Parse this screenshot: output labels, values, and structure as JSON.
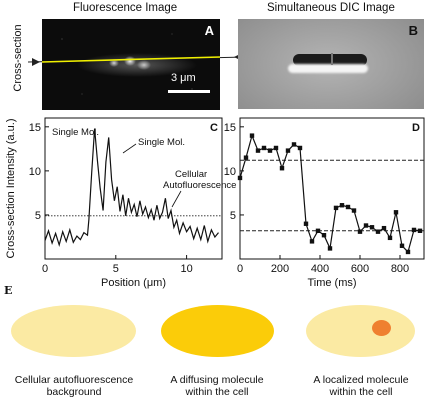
{
  "panel_titles": {
    "fluorescence": "Fluorescence Image",
    "dic": "Simultaneous DIC Image"
  },
  "panel_labels": {
    "a": "A",
    "b": "B",
    "c": "C",
    "d": "D",
    "e": "E"
  },
  "left_axis_label": "Cross-section",
  "scale_bar": "3 μm",
  "chart_data": [
    {
      "type": "line",
      "panel": "C",
      "ylabel": "Cross-section Intensity (a.u.)",
      "xlabel": "Position (μm)",
      "xlim": [
        0,
        12.5
      ],
      "ylim": [
        0,
        16
      ],
      "xticks": [
        "0",
        "5",
        "10"
      ],
      "yticks": [
        "5",
        "10",
        "15"
      ],
      "threshold": 4.9,
      "series": [
        {
          "x": [
            0,
            0.25,
            0.5,
            0.75,
            1,
            1.25,
            1.5,
            1.75,
            2,
            2.25,
            2.5,
            2.75,
            3,
            3.1,
            3.3,
            3.5,
            3.7,
            3.9,
            4.1,
            4.3,
            4.5,
            4.7,
            4.9,
            5.1,
            5.3,
            5.5,
            5.7,
            5.9,
            6.1,
            6.3,
            6.5,
            6.7,
            6.9,
            7.1,
            7.3,
            7.5,
            7.7,
            7.9,
            8.1,
            8.3,
            8.5,
            8.7,
            8.9,
            9.1,
            9.3,
            9.5,
            9.75,
            10,
            10.25,
            10.5,
            10.75,
            11,
            11.25,
            11.5,
            11.75,
            12,
            12.25
          ],
          "y": [
            2.1,
            3.2,
            1.8,
            2.9,
            1.6,
            3.1,
            2.0,
            3.3,
            1.9,
            2.6,
            2.2,
            3.0,
            2.7,
            4.5,
            9.8,
            14.8,
            11.2,
            8.0,
            5.5,
            11.0,
            13.8,
            9.0,
            6.6,
            8.2,
            5.4,
            7.3,
            4.9,
            6.9,
            5.3,
            6.2,
            4.8,
            6.6,
            5.1,
            5.9,
            4.7,
            5.6,
            4.4,
            6.1,
            4.6,
            5.3,
            6.9,
            4.6,
            5.5,
            3.6,
            4.4,
            2.9,
            4.1,
            3.1,
            3.7,
            2.3,
            3.5,
            2.2,
            3.8,
            2.0,
            3.3,
            2.5,
            3.0
          ]
        }
      ],
      "annotations": [
        "Single Mol.",
        "Single Mol.",
        "Cellular",
        "Autofluorescence"
      ]
    },
    {
      "type": "line",
      "panel": "D",
      "xlabel": "Time (ms)",
      "xlim": [
        0,
        920
      ],
      "ylim": [
        0,
        16
      ],
      "xticks": [
        "0",
        "200",
        "400",
        "600",
        "800"
      ],
      "yticks": [
        "5",
        "10",
        "15"
      ],
      "levels": [
        11.2,
        3.2
      ],
      "series": [
        {
          "x": [
            0,
            30,
            60,
            90,
            120,
            150,
            180,
            210,
            240,
            270,
            300,
            330,
            360,
            390,
            420,
            450,
            480,
            510,
            540,
            570,
            600,
            630,
            660,
            690,
            720,
            750,
            780,
            810,
            840,
            870,
            900
          ],
          "y": [
            9.2,
            11.5,
            14.0,
            12.3,
            12.6,
            12.3,
            12.6,
            10.3,
            12.3,
            13.0,
            12.6,
            4.0,
            2.0,
            3.2,
            2.7,
            1.2,
            5.8,
            6.1,
            5.9,
            5.5,
            3.1,
            3.8,
            3.6,
            3.1,
            3.5,
            2.4,
            5.3,
            1.5,
            0.8,
            3.3,
            3.2
          ]
        }
      ]
    }
  ],
  "panel_e": {
    "captions": [
      [
        "Cellular autofluorescence",
        "background"
      ],
      [
        "A diffusing molecule",
        "within the cell"
      ],
      [
        "A localized molecule",
        "within the cell"
      ]
    ],
    "colors": {
      "pale": "#fbeaa3",
      "bright": "#fbcc09",
      "spot": "#ef8030"
    }
  }
}
